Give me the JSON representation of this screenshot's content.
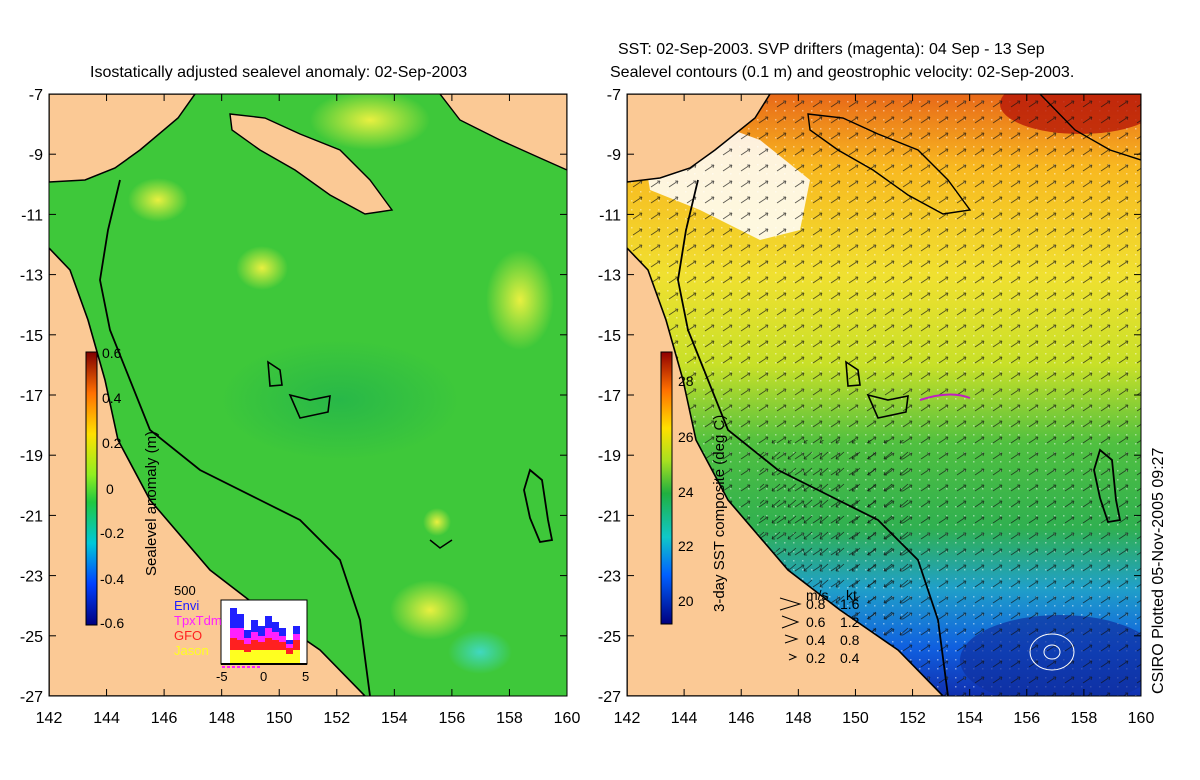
{
  "left_panel": {
    "title": "Isostatically adjusted sealevel anomaly: 02-Sep-2003",
    "colorbar": {
      "label": "Sealevel anomaly (m)",
      "ticks": [
        "0.6",
        "0.4",
        "0.2",
        "0",
        "-0.2",
        "-0.4",
        "-0.6"
      ]
    },
    "inset": {
      "max_label": "500",
      "x_ticks": [
        "-5",
        "0",
        "5"
      ],
      "legend": [
        {
          "name": "Envi",
          "color": "#2020ff"
        },
        {
          "name": "TpxTdm",
          "color": "#ff20ff"
        },
        {
          "name": "GFO",
          "color": "#ff2020"
        },
        {
          "name": "Jason",
          "color": "#ffff20"
        }
      ]
    }
  },
  "right_panel": {
    "title_line1": "SST: 02-Sep-2003. SVP drifters (magenta): 04 Sep - 13 Sep",
    "title_line2": "Sealevel contours (0.1 m) and geostrophic velocity: 02-Sep-2003.",
    "colorbar": {
      "label": "3-day SST composite (deg C)",
      "ticks": [
        "28",
        "26",
        "24",
        "22",
        "20"
      ]
    },
    "velocity_legend": {
      "header_ms": "m/s",
      "header_kt": "kt",
      "rows": [
        {
          "ms": "0.8",
          "kt": "1.6"
        },
        {
          "ms": "0.6",
          "kt": "1.2"
        },
        {
          "ms": "0.4",
          "kt": "0.8"
        },
        {
          "ms": "0.2",
          "kt": "0.4"
        }
      ]
    },
    "credit": "CSIRO Plotted 05-Nov-2005 09:27"
  },
  "axes": {
    "lat_ticks": [
      "-7",
      "-9",
      "-11",
      "-13",
      "-15",
      "-17",
      "-19",
      "-21",
      "-23",
      "-25",
      "-27"
    ],
    "lon_ticks": [
      "142",
      "144",
      "146",
      "148",
      "150",
      "152",
      "154",
      "156",
      "158",
      "160"
    ]
  },
  "colors": {
    "land": "#fbc995",
    "sla_green": "#3ec83a",
    "sst_green": "#2db04a",
    "coast": "#000000"
  }
}
